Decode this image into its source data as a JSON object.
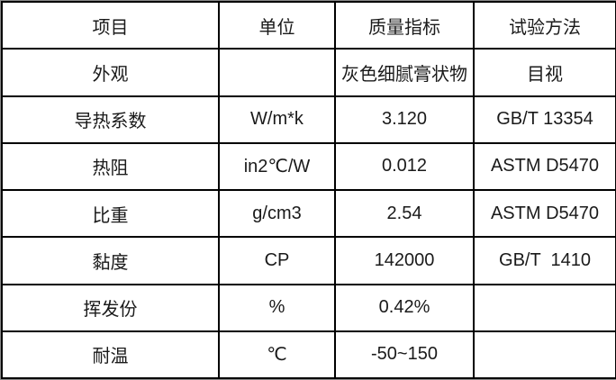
{
  "table": {
    "columns": {
      "item": {
        "label": "项目"
      },
      "unit": {
        "label": "单位"
      },
      "spec": {
        "label": "质量指标"
      },
      "method": {
        "label": "试验方法"
      }
    },
    "rows": [
      {
        "item": "外观",
        "unit": "",
        "spec": "灰色细腻膏状物",
        "method": "目视"
      },
      {
        "item": "导热系数",
        "unit": "W/m*k",
        "spec": "3.120",
        "method": "GB/T 13354"
      },
      {
        "item": "热阻",
        "unit": "in2℃/W",
        "spec": "0.012",
        "method": "ASTM D5470"
      },
      {
        "item": "比重",
        "unit": "g/cm3",
        "spec": "2.54",
        "method": "ASTM D5470"
      },
      {
        "item": "黏度",
        "unit": "CP",
        "spec": "142000",
        "method": "GB/T  1410"
      },
      {
        "item": "挥发份",
        "unit": "%",
        "spec": "0.42%",
        "method": ""
      },
      {
        "item": "耐温",
        "unit": "℃",
        "spec": "-50~150",
        "method": ""
      }
    ],
    "colors": {
      "border": "#000000",
      "text": "#1a1a1a",
      "background": "#ffffff",
      "frame": "#8a8a8a"
    }
  }
}
